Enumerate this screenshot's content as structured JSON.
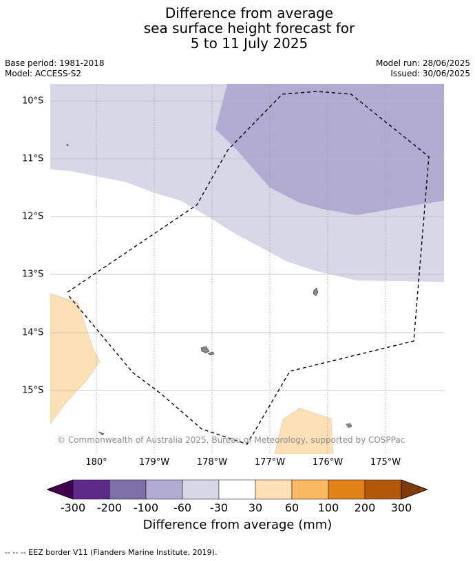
{
  "title": {
    "line1": "Difference from average",
    "line2": "sea surface height forecast for",
    "line3": "5 to 11 July 2025"
  },
  "meta": {
    "base_period": "Base period: 1981-2018",
    "model": "Model: ACCESS-S2",
    "model_run": "Model run: 28/06/2025",
    "issued": "Issued: 30/06/2025"
  },
  "map": {
    "lat_labels": [
      "10°S",
      "11°S",
      "12°S",
      "13°S",
      "14°S",
      "15°S"
    ],
    "lon_labels": [
      "180°",
      "179°W",
      "178°W",
      "177°W",
      "176°W",
      "175°W"
    ],
    "copyright": "© Commonwealth of Australia 2025, Bureau of Meteorology, supported by COSPPac",
    "colors": {
      "light_purple": "#d7d7e8",
      "mid_purple": "#b1abd1",
      "light_orange": "#fde0b6",
      "land": "#888888",
      "grid": "#b0b0b0"
    }
  },
  "colorbar": {
    "ticks": [
      "-300",
      "-200",
      "-100",
      "-60",
      "-30",
      "30",
      "60",
      "100",
      "200",
      "300"
    ],
    "colors": [
      "#40004b",
      "#5e2a8a",
      "#7e6ea9",
      "#b1abd1",
      "#d7d7e8",
      "#ffffff",
      "#fde0b6",
      "#f9b862",
      "#e08214",
      "#b35806",
      "#7f3b08"
    ],
    "label": "Difference from average (mm)"
  },
  "source_note": "--  --  -- EEZ border V11 (Flanders Marine Institute, 2019)."
}
